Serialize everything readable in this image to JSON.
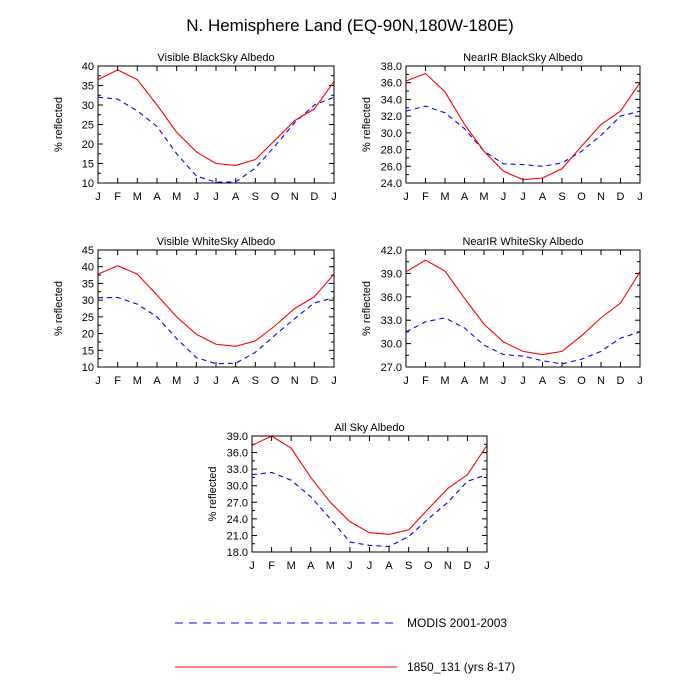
{
  "title": "N. Hemisphere Land (EQ-90N,180W-180E)",
  "months": [
    "J",
    "F",
    "M",
    "A",
    "M",
    "J",
    "J",
    "A",
    "S",
    "O",
    "N",
    "D",
    "J"
  ],
  "legend": {
    "modis_label": "MODIS 2001-2003",
    "model_label": "1850_131 (yrs 8-17)"
  },
  "colors": {
    "modis": "#0000ff",
    "model": "#ff0000"
  },
  "chart_data": [
    {
      "type": "line",
      "title": "Visible BlackSky Albedo",
      "xlabel": "",
      "ylabel": "% reflected",
      "ylim": [
        10,
        40
      ],
      "yticks": [
        "10",
        "15",
        "20",
        "25",
        "30",
        "35",
        "40"
      ],
      "yticks_values": [
        10,
        15,
        20,
        25,
        30,
        35,
        40
      ],
      "series": [
        {
          "name": "MODIS 2001-2003",
          "values": [
            32.0,
            31.5,
            28.5,
            24.5,
            17.5,
            11.8,
            10.2,
            10.3,
            13.8,
            19.5,
            25.5,
            30.0,
            32.0
          ]
        },
        {
          "name": "1850_131 (yrs 8-17)",
          "values": [
            36.5,
            39.0,
            36.5,
            30.0,
            23.0,
            18.0,
            15.0,
            14.5,
            16.0,
            21.0,
            26.0,
            29.0,
            36.0
          ]
        }
      ]
    },
    {
      "type": "line",
      "title": "NearIR BlackSky Albedo",
      "xlabel": "",
      "ylabel": "% reflected",
      "ylim": [
        24,
        38
      ],
      "yticks": [
        "24.0",
        "26.0",
        "28.0",
        "30.0",
        "32.0",
        "34.0",
        "36.0",
        "38.0"
      ],
      "yticks_values": [
        24,
        26,
        28,
        30,
        32,
        34,
        36,
        38
      ],
      "series": [
        {
          "name": "MODIS 2001-2003",
          "values": [
            32.6,
            33.2,
            32.4,
            30.5,
            27.8,
            26.3,
            26.2,
            26.0,
            26.4,
            27.8,
            29.7,
            32.0,
            32.6
          ]
        },
        {
          "name": "1850_131 (yrs 8-17)",
          "values": [
            36.2,
            37.1,
            34.9,
            31.0,
            27.8,
            25.4,
            24.4,
            24.6,
            25.7,
            28.4,
            31.0,
            32.6,
            36.0
          ]
        }
      ]
    },
    {
      "type": "line",
      "title": "Visible WhiteSky Albedo",
      "xlabel": "",
      "ylabel": "% reflected",
      "ylim": [
        10,
        45
      ],
      "yticks": [
        "10",
        "15",
        "20",
        "25",
        "30",
        "35",
        "40",
        "45"
      ],
      "yticks_values": [
        10,
        15,
        20,
        25,
        30,
        35,
        40,
        45
      ],
      "series": [
        {
          "name": "MODIS 2001-2003",
          "values": [
            30.7,
            30.8,
            28.8,
            25.0,
            18.5,
            12.8,
            11.0,
            11.1,
            14.4,
            19.5,
            24.5,
            29.2,
            30.7
          ]
        },
        {
          "name": "1850_131 (yrs 8-17)",
          "values": [
            37.8,
            40.3,
            37.8,
            31.5,
            25.0,
            19.8,
            16.8,
            16.2,
            17.8,
            22.3,
            27.5,
            31.0,
            37.8
          ]
        }
      ]
    },
    {
      "type": "line",
      "title": "NearIR WhiteSky Albedo",
      "xlabel": "",
      "ylabel": "% reflected",
      "ylim": [
        27,
        42
      ],
      "yticks": [
        "27.0",
        "30.0",
        "33.0",
        "36.0",
        "39.0",
        "42.0"
      ],
      "yticks_values": [
        27,
        30,
        33,
        36,
        39,
        42
      ],
      "series": [
        {
          "name": "MODIS 2001-2003",
          "values": [
            31.5,
            32.8,
            33.3,
            32.0,
            29.8,
            28.6,
            28.4,
            27.8,
            27.4,
            28.0,
            29.0,
            30.7,
            31.5
          ]
        },
        {
          "name": "1850_131 (yrs 8-17)",
          "values": [
            39.2,
            40.7,
            39.3,
            35.8,
            32.5,
            30.2,
            29.0,
            28.6,
            29.0,
            31.0,
            33.3,
            35.2,
            39.2
          ]
        }
      ]
    },
    {
      "type": "line",
      "title": "All Sky Albedo",
      "xlabel": "",
      "ylabel": "% reflected",
      "ylim": [
        18,
        39
      ],
      "yticks": [
        "18.0",
        "21.0",
        "24.0",
        "27.0",
        "30.0",
        "33.0",
        "36.0",
        "39.0"
      ],
      "yticks_values": [
        18,
        21,
        24,
        27,
        30,
        33,
        36,
        39
      ],
      "series": [
        {
          "name": "MODIS 2001-2003",
          "values": [
            32.0,
            32.4,
            31.0,
            28.0,
            24.0,
            19.8,
            19.2,
            19.0,
            20.8,
            24.0,
            27.0,
            30.8,
            32.0
          ]
        },
        {
          "name": "1850_131 (yrs 8-17)",
          "values": [
            37.3,
            39.0,
            36.8,
            31.5,
            27.0,
            23.5,
            21.5,
            21.2,
            22.0,
            25.8,
            29.5,
            32.0,
            37.3
          ]
        }
      ]
    }
  ]
}
